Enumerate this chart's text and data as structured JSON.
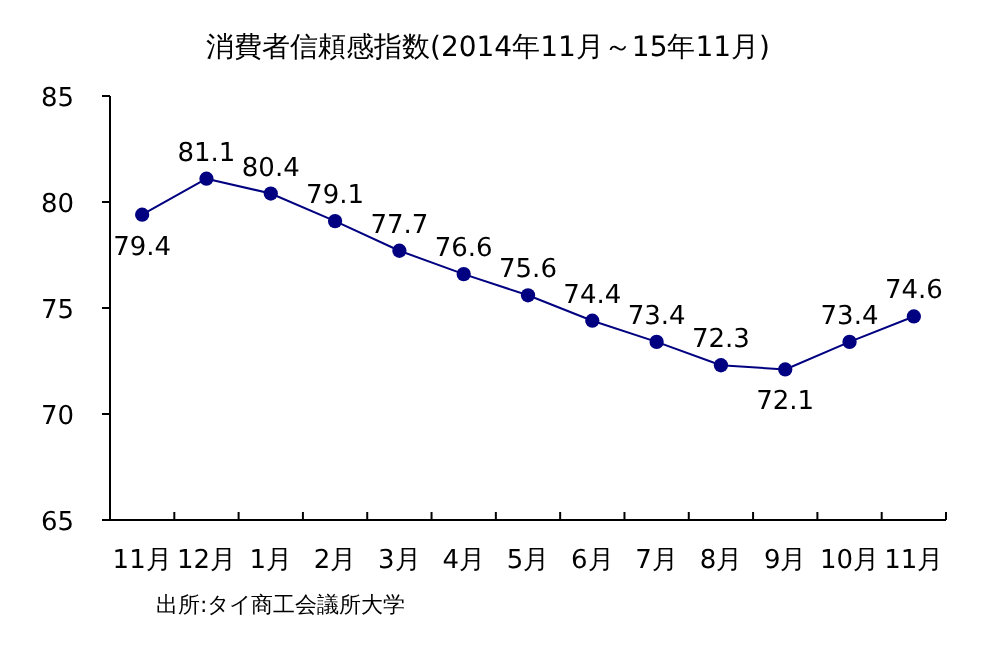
{
  "chart_data": {
    "type": "line",
    "title": "消費者信頼感指数(2014年11月～15年11月)",
    "categories": [
      "11月",
      "12月",
      "1月",
      "2月",
      "3月",
      "4月",
      "5月",
      "6月",
      "7月",
      "8月",
      "9月",
      "10月",
      "11月"
    ],
    "series": [
      {
        "color": "#000080",
        "values": [
          79.4,
          81.1,
          80.4,
          79.1,
          77.7,
          76.6,
          75.6,
          74.4,
          73.4,
          72.3,
          72.1,
          73.4,
          74.6
        ]
      }
    ],
    "ylim": [
      65,
      85
    ],
    "yticks": [
      65,
      70,
      75,
      80,
      85
    ],
    "data_labels": true,
    "marker": "circle",
    "grid": false,
    "annotations": [
      "出所:タイ商工会議所大学"
    ]
  }
}
